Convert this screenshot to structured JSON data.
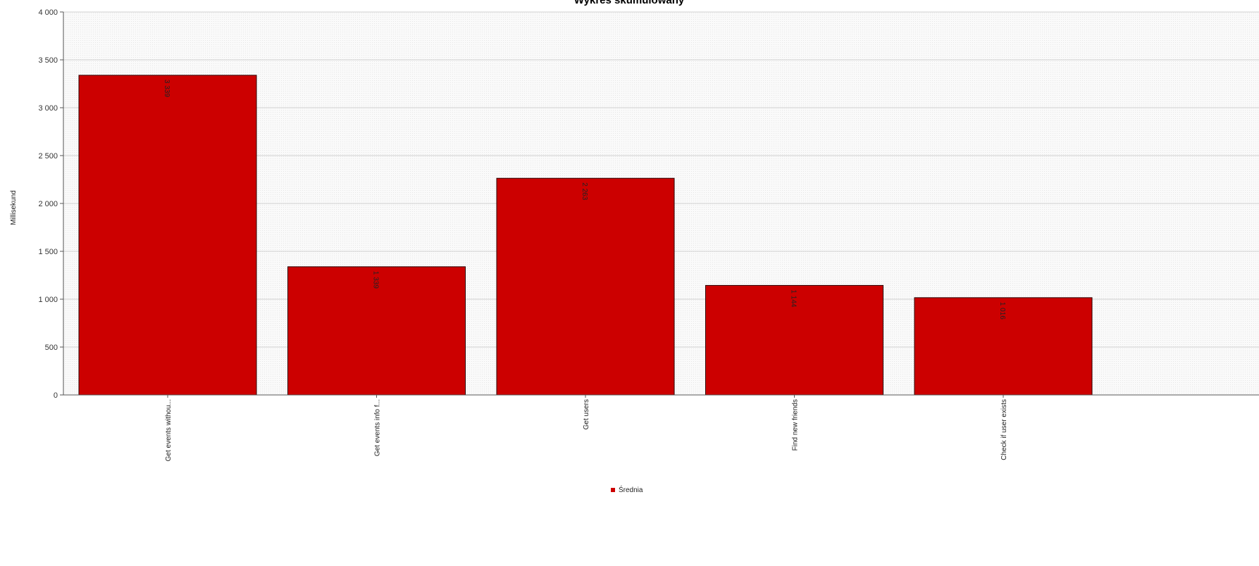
{
  "chart_data": {
    "type": "bar",
    "title": "Wykres skumulowany",
    "xlabel": "",
    "ylabel": "Millisekund",
    "categories": [
      "Get events withou...",
      "Get events info f...",
      "Get users",
      "Find new friends",
      "Check if user exists"
    ],
    "series": [
      {
        "name": "Średnia",
        "values": [
          3339,
          1339,
          2263,
          1144,
          1016
        ]
      }
    ],
    "data_labels": [
      "3 339",
      "1 339",
      "2 263",
      "1 144",
      "1 016"
    ],
    "ylim": [
      0,
      4000
    ],
    "yticks": [
      0,
      500,
      1000,
      1500,
      2000,
      2500,
      3000,
      3500,
      4000
    ],
    "ytick_labels": [
      "0",
      "500",
      "1 000",
      "1 500",
      "2 000",
      "2 500",
      "3 000",
      "3 500",
      "4 000"
    ],
    "grid": true,
    "legend": "bottom-center",
    "colors": {
      "bar": "#cc0000",
      "bar_stroke": "#2a0000",
      "plot_background": "#f9f9f9",
      "grid": "#d0d0d0"
    }
  }
}
